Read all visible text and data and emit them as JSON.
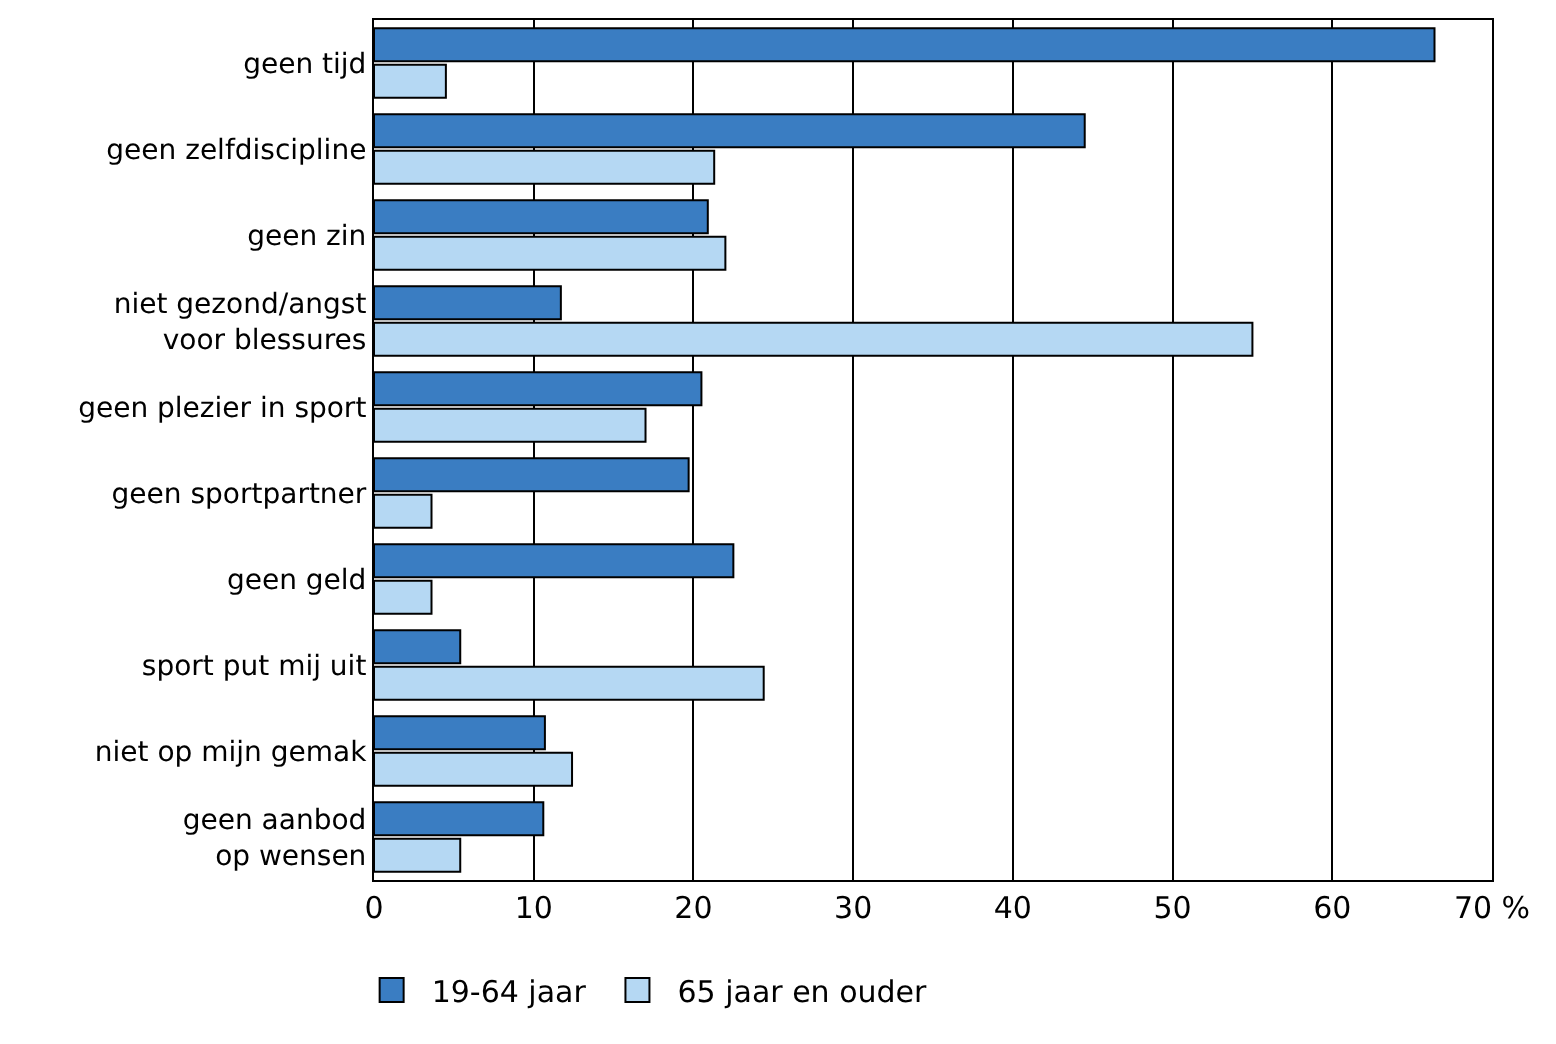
{
  "chart_data": {
    "type": "bar",
    "orientation": "horizontal",
    "categories": [
      "geen tijd",
      "geen zelfdiscipline",
      "geen zin",
      "niet gezond/angst\nvoor blessures",
      "geen plezier in sport",
      "geen sportpartner",
      "geen geld",
      "sport put mij uit",
      "niet op mijn gemak",
      "geen aanbod\nop wensen"
    ],
    "series": [
      {
        "name": "19-64 jaar",
        "color": "#3a7dc2",
        "values": [
          66.4,
          44.5,
          20.9,
          11.7,
          20.5,
          19.7,
          22.5,
          5.4,
          10.7,
          10.6
        ]
      },
      {
        "name": "65 jaar en ouder",
        "color": "#b5d8f3",
        "values": [
          4.5,
          21.3,
          22.0,
          55.0,
          17.0,
          3.6,
          3.6,
          24.4,
          12.4,
          5.4
        ]
      }
    ],
    "xlim": [
      0,
      70
    ],
    "xticks": [
      0,
      10,
      20,
      30,
      40,
      50,
      60,
      {
        "value": 70,
        "label": "70 %"
      }
    ],
    "grid": "x",
    "legend": "bottom left"
  }
}
